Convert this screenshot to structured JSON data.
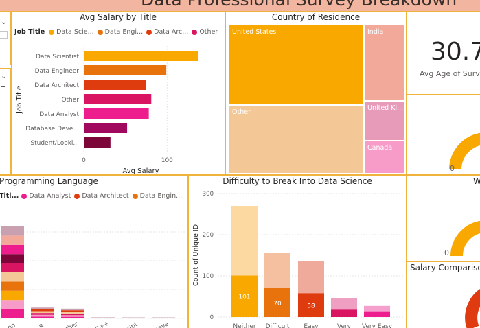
{
  "banner": {
    "title": "Data Professional Survey Breakdown"
  },
  "colors": {
    "border": "#F0B33B",
    "orange": "#F9A800",
    "dark_orange": "#E8730C",
    "red": "#DE3B0F",
    "crimson": "#D91460",
    "pink": "#EE1D8D",
    "magenta": "#A1095F",
    "maroon": "#7D0638",
    "banner": "#F2B5A0"
  },
  "left_slicers": {
    "chevron_1": "⌄",
    "chevron_2": "⌄"
  },
  "avg_salary": {
    "title": "Avg Salary by Title",
    "legend": {
      "title": "Job Title",
      "items": [
        {
          "label": "Data Scie...",
          "color": "#F9A800"
        },
        {
          "label": "Data Engi...",
          "color": "#E8730C"
        },
        {
          "label": "Data Arc...",
          "color": "#DE3B0F"
        },
        {
          "label": "Other",
          "color": "#D91460"
        }
      ],
      "more": "▶"
    }
  },
  "country": {
    "title": "Country of Residence",
    "cells": [
      {
        "label": "United States",
        "color": "#F9A800"
      },
      {
        "label": "India",
        "color": "#F2A99A"
      },
      {
        "label": "Other",
        "color": "#F4C896"
      },
      {
        "label": "United Ki...",
        "color": "#E89BB8"
      },
      {
        "label": "Canada",
        "color": "#F79CC9"
      }
    ]
  },
  "age_card": {
    "value": "30.7",
    "label": "Avg Age of Surv"
  },
  "gauge_1": {
    "min_label": "0"
  },
  "gauge_2": {
    "title": "W",
    "min_label": "0"
  },
  "programming": {
    "title": "Programming Language",
    "legend": {
      "title": "Titl...",
      "items": [
        {
          "label": "Data Analyst",
          "color": "#EE1D8D"
        },
        {
          "label": "Data Architect",
          "color": "#DE3B0F"
        },
        {
          "label": "Data Engin...",
          "color": "#E8730C"
        }
      ],
      "more": "▶"
    }
  },
  "difficulty": {
    "title": "Difficulty to Break Into Data Science"
  },
  "salary_comparison": {
    "title": "Salary Compariso"
  },
  "chart_data": [
    {
      "type": "bar",
      "orientation": "horizontal",
      "title": "Avg Salary by Title",
      "xlabel": "Avg Salary",
      "ylabel": "Job Title",
      "categories": [
        "Data Scientist",
        "Data Engineer",
        "Data Architect",
        "Other",
        "Data Analyst",
        "Database Deve...",
        "Student/Looki..."
      ],
      "values": [
        137,
        99,
        75,
        81,
        78,
        52,
        32
      ],
      "colors": [
        "#F9A800",
        "#E8730C",
        "#DE3B0F",
        "#D91460",
        "#EE1D8D",
        "#A1095F",
        "#7D0638"
      ],
      "xlim": [
        0,
        150
      ],
      "xticks": [
        "0",
        "100"
      ],
      "grid": true
    },
    {
      "type": "treemap",
      "title": "Country of Residence",
      "categories": [
        "United States",
        "India",
        "Other",
        "United Ki...",
        "Canada"
      ],
      "values": [
        45,
        15,
        28,
        5,
        5
      ]
    },
    {
      "type": "bar",
      "stacked": true,
      "title": "Programming Language",
      "categories": [
        "Python",
        "R",
        "Other",
        "C/C++",
        "Javascript",
        "Java"
      ],
      "tick_labels": [
        "on",
        "R",
        "ther",
        "C++",
        "ript",
        "Java"
      ],
      "totals": [
        170,
        20,
        18,
        2,
        1,
        1
      ]
    },
    {
      "type": "bar",
      "stacked": true,
      "title": "Difficulty to Break Into Data Science",
      "ylabel": "Count of Unique ID",
      "categories": [
        "Neither",
        "Difficult",
        "Easy",
        "Very",
        "Very Easy"
      ],
      "ylim": [
        0,
        300
      ],
      "yticks": [
        "0",
        "100",
        "200",
        "300"
      ],
      "series": [
        {
          "values": [
            101,
            70,
            58,
            18,
            14
          ],
          "data_labels": [
            "101",
            "70",
            "58",
            "",
            ""
          ]
        },
        {
          "values": [
            169,
            86,
            77,
            27,
            13
          ]
        }
      ],
      "bar_colors": [
        [
          "#F9A800",
          "#FBD9A1"
        ],
        [
          "#E8730C",
          "#F4C0A0"
        ],
        [
          "#DE3B0F",
          "#F0AA9B"
        ],
        [
          "#D91460",
          "#EFA0C2"
        ],
        [
          "#EE1D8D",
          "#F5A0CC"
        ]
      ],
      "grid": true
    }
  ]
}
